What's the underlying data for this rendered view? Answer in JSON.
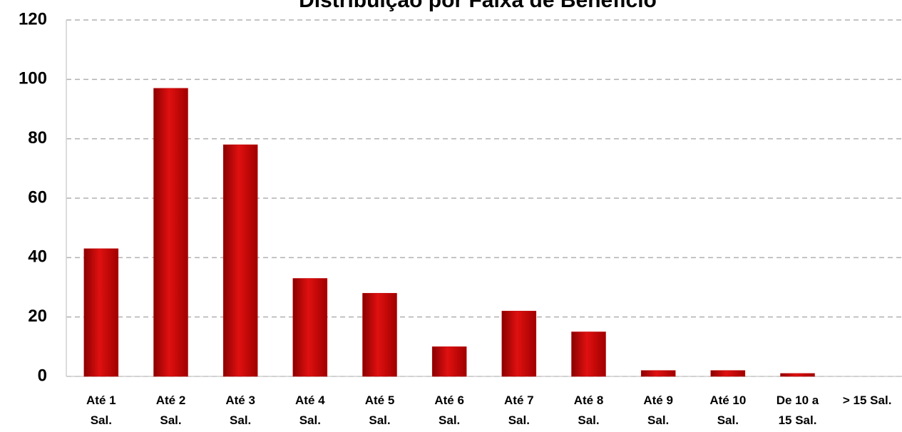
{
  "chart_data": {
    "type": "bar",
    "title": "Distribuição por Faixa de Benefício",
    "categories": [
      "Até 1\nSal.",
      "Até 2\nSal.",
      "Até 3\nSal.",
      "Até 4\nSal.",
      "Até 5\nSal.",
      "Até 6\nSal.",
      "Até 7\nSal.",
      "Até 8\nSal.",
      "Até 9\nSal.",
      "Até 10\nSal.",
      "De 10 a\n15 Sal.",
      "> 15 Sal."
    ],
    "values": [
      43,
      97,
      78,
      33,
      28,
      10,
      22,
      15,
      2,
      2,
      1,
      0
    ],
    "color": "#c00000",
    "ylim": [
      0,
      120
    ],
    "yticks": [
      0,
      20,
      40,
      60,
      80,
      100,
      120
    ],
    "grid": true
  }
}
